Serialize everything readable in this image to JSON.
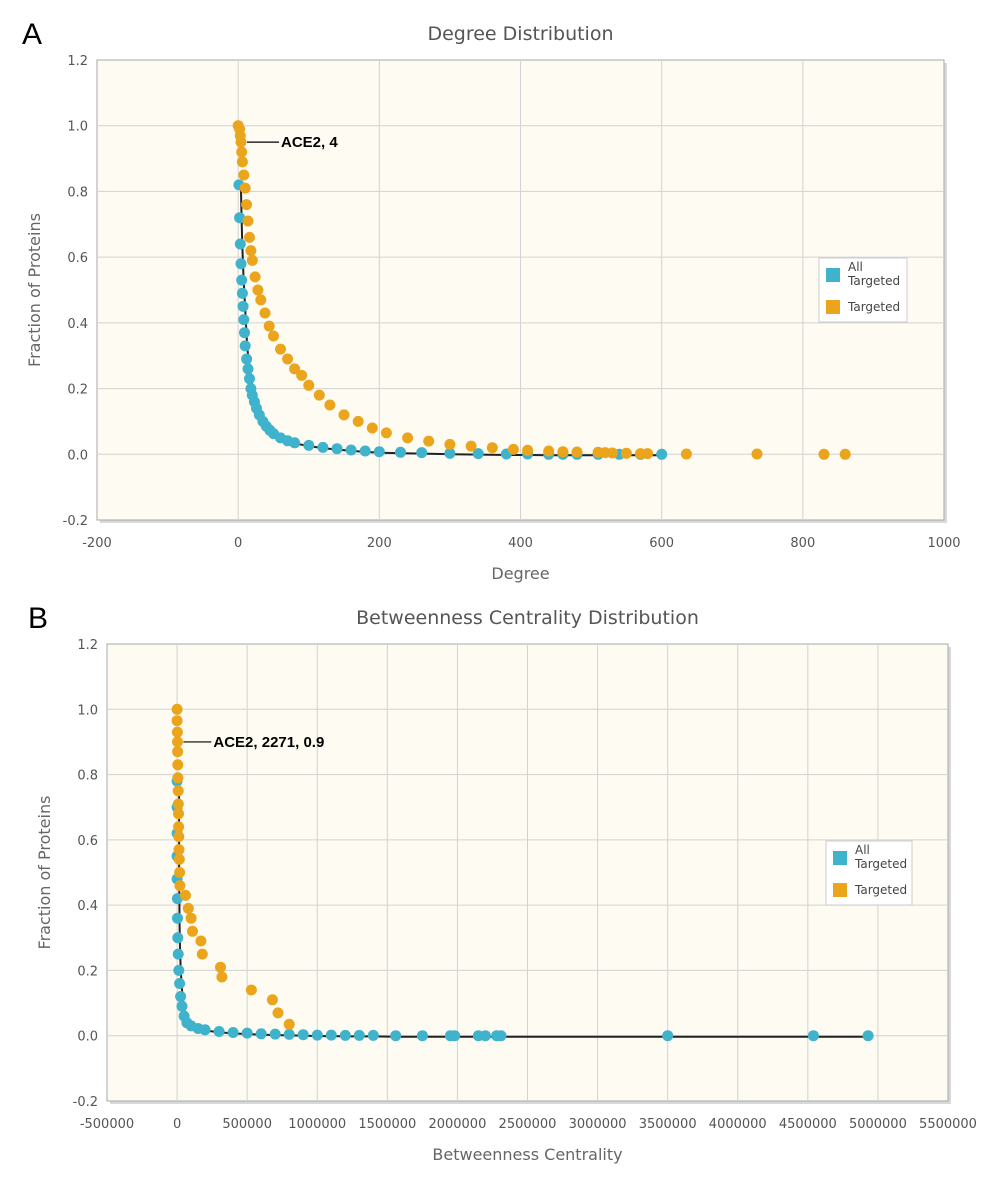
{
  "panels": [
    {
      "letter": "A"
    },
    {
      "letter": "B"
    }
  ],
  "colors": {
    "all_targeted": "#3fb3cc",
    "targeted": "#eba51c",
    "plot_bg": "#fdfbf2",
    "grid": "#d2d2d2"
  },
  "chart_data": [
    {
      "type": "scatter",
      "title": "Degree Distribution",
      "xlabel": "Degree",
      "ylabel": "Fraction of Proteins",
      "xlim": [
        -200,
        1000
      ],
      "ylim": [
        -0.2,
        1.2
      ],
      "xticks": [
        -200,
        0,
        200,
        400,
        600,
        800,
        1000
      ],
      "xtick_labels": [
        "-200",
        "0",
        "200",
        "400",
        "600",
        "800",
        "1000"
      ],
      "yticks": [
        -0.2,
        0.0,
        0.2,
        0.4,
        0.6,
        0.8,
        1.0,
        1.2
      ],
      "ytick_labels": [
        "-0.2",
        "0.0",
        "0.2",
        "0.4",
        "0.6",
        "0.8",
        "1.0",
        "1.2"
      ],
      "grid": true,
      "legend_position": "right",
      "series": [
        {
          "name": "All Targeted",
          "legend_lines": [
            "All",
            "Targeted"
          ],
          "color": "#3fb3cc",
          "points": [
            [
              1,
              0.82
            ],
            [
              2,
              0.72
            ],
            [
              3,
              0.64
            ],
            [
              4,
              0.58
            ],
            [
              5,
              0.53
            ],
            [
              6,
              0.49
            ],
            [
              7,
              0.45
            ],
            [
              8,
              0.41
            ],
            [
              9,
              0.37
            ],
            [
              10,
              0.33
            ],
            [
              12,
              0.29
            ],
            [
              14,
              0.26
            ],
            [
              16,
              0.23
            ],
            [
              18,
              0.2
            ],
            [
              20,
              0.18
            ],
            [
              23,
              0.16
            ],
            [
              26,
              0.14
            ],
            [
              30,
              0.12
            ],
            [
              35,
              0.1
            ],
            [
              40,
              0.085
            ],
            [
              45,
              0.073
            ],
            [
              50,
              0.063
            ],
            [
              60,
              0.05
            ],
            [
              70,
              0.041
            ],
            [
              80,
              0.035
            ],
            [
              100,
              0.027
            ],
            [
              120,
              0.021
            ],
            [
              140,
              0.017
            ],
            [
              160,
              0.013
            ],
            [
              180,
              0.01
            ],
            [
              200,
              0.008
            ],
            [
              230,
              0.006
            ],
            [
              260,
              0.005
            ],
            [
              300,
              0.003
            ],
            [
              340,
              0.002
            ],
            [
              380,
              0.001
            ],
            [
              410,
              0.001
            ],
            [
              440,
              0.0
            ],
            [
              460,
              0.0
            ],
            [
              480,
              0.0
            ],
            [
              510,
              0.0
            ],
            [
              540,
              0.0
            ],
            [
              570,
              0.0
            ],
            [
              600,
              0.0
            ]
          ]
        },
        {
          "name": "Targeted",
          "legend_lines": [
            "Targeted"
          ],
          "color": "#eba51c",
          "points": [
            [
              0,
              1.0
            ],
            [
              2,
              0.99
            ],
            [
              3,
              0.97
            ],
            [
              4,
              0.95
            ],
            [
              5,
              0.92
            ],
            [
              6,
              0.89
            ],
            [
              8,
              0.85
            ],
            [
              10,
              0.81
            ],
            [
              12,
              0.76
            ],
            [
              14,
              0.71
            ],
            [
              16,
              0.66
            ],
            [
              18,
              0.62
            ],
            [
              20,
              0.59
            ],
            [
              24,
              0.54
            ],
            [
              28,
              0.5
            ],
            [
              32,
              0.47
            ],
            [
              38,
              0.43
            ],
            [
              44,
              0.39
            ],
            [
              50,
              0.36
            ],
            [
              60,
              0.32
            ],
            [
              70,
              0.29
            ],
            [
              80,
              0.26
            ],
            [
              90,
              0.24
            ],
            [
              100,
              0.21
            ],
            [
              115,
              0.18
            ],
            [
              130,
              0.15
            ],
            [
              150,
              0.12
            ],
            [
              170,
              0.1
            ],
            [
              190,
              0.08
            ],
            [
              210,
              0.065
            ],
            [
              240,
              0.05
            ],
            [
              270,
              0.04
            ],
            [
              300,
              0.03
            ],
            [
              330,
              0.025
            ],
            [
              360,
              0.02
            ],
            [
              390,
              0.015
            ],
            [
              410,
              0.012
            ],
            [
              440,
              0.01
            ],
            [
              460,
              0.008
            ],
            [
              480,
              0.007
            ],
            [
              510,
              0.006
            ],
            [
              520,
              0.005
            ],
            [
              530,
              0.004
            ],
            [
              550,
              0.003
            ],
            [
              570,
              0.002
            ],
            [
              580,
              0.002
            ],
            [
              635,
              0.001
            ],
            [
              735,
              0.001
            ],
            [
              830,
              0.0
            ],
            [
              860,
              0.0
            ]
          ]
        }
      ],
      "annotations": [
        {
          "text": "ACE2, 4",
          "x": 4,
          "y": 0.95
        }
      ]
    },
    {
      "type": "scatter",
      "title": "Betweenness Centrality Distribution",
      "xlabel": "Betweenness Centrality",
      "ylabel": "Fraction of Proteins",
      "xlim": [
        -500000,
        5500000
      ],
      "ylim": [
        -0.2,
        1.2
      ],
      "xticks": [
        -500000,
        0,
        500000,
        1000000,
        1500000,
        2000000,
        2500000,
        3000000,
        3500000,
        4000000,
        4500000,
        5000000,
        5500000
      ],
      "xtick_labels": [
        "-500000",
        "0",
        "500000",
        "1000000",
        "1500000",
        "2000000",
        "2500000",
        "3000000",
        "3500000",
        "4000000",
        "4500000",
        "5000000",
        "5500000"
      ],
      "yticks": [
        -0.2,
        0.0,
        0.2,
        0.4,
        0.6,
        0.8,
        1.0,
        1.2
      ],
      "ytick_labels": [
        "-0.2",
        "0.0",
        "0.2",
        "0.4",
        "0.6",
        "0.8",
        "1.0",
        "1.2"
      ],
      "grid": true,
      "legend_position": "right",
      "series": [
        {
          "name": "All Targeted",
          "legend_lines": [
            "All",
            "Targeted"
          ],
          "color": "#3fb3cc",
          "points": [
            [
              0,
              0.78
            ],
            [
              0,
              0.7
            ],
            [
              0,
              0.62
            ],
            [
              0,
              0.55
            ],
            [
              0,
              0.48
            ],
            [
              2000,
              0.42
            ],
            [
              3000,
              0.36
            ],
            [
              5000,
              0.3
            ],
            [
              8000,
              0.25
            ],
            [
              12000,
              0.2
            ],
            [
              18000,
              0.16
            ],
            [
              25000,
              0.12
            ],
            [
              35000,
              0.09
            ],
            [
              50000,
              0.06
            ],
            [
              70000,
              0.04
            ],
            [
              100000,
              0.03
            ],
            [
              150000,
              0.022
            ],
            [
              200000,
              0.018
            ],
            [
              300000,
              0.013
            ],
            [
              400000,
              0.01
            ],
            [
              500000,
              0.008
            ],
            [
              600000,
              0.006
            ],
            [
              700000,
              0.005
            ],
            [
              800000,
              0.004
            ],
            [
              900000,
              0.003
            ],
            [
              1000000,
              0.002
            ],
            [
              1100000,
              0.002
            ],
            [
              1200000,
              0.001
            ],
            [
              1300000,
              0.001
            ],
            [
              1400000,
              0.001
            ],
            [
              1560000,
              0.0
            ],
            [
              1750000,
              0.0
            ],
            [
              1950000,
              0.0
            ],
            [
              1980000,
              0.0
            ],
            [
              2150000,
              0.0
            ],
            [
              2200000,
              0.0
            ],
            [
              2280000,
              0.0
            ],
            [
              2310000,
              0.0
            ],
            [
              3500000,
              0.0
            ],
            [
              4540000,
              0.0
            ],
            [
              4930000,
              0.0
            ]
          ]
        },
        {
          "name": "Targeted",
          "legend_lines": [
            "Targeted"
          ],
          "color": "#eba51c",
          "points": [
            [
              0,
              1.0
            ],
            [
              0,
              0.965
            ],
            [
              2271,
              0.93
            ],
            [
              3000,
              0.9
            ],
            [
              4000,
              0.87
            ],
            [
              5000,
              0.83
            ],
            [
              6000,
              0.79
            ],
            [
              8000,
              0.75
            ],
            [
              9000,
              0.71
            ],
            [
              10000,
              0.68
            ],
            [
              11000,
              0.64
            ],
            [
              12000,
              0.61
            ],
            [
              14000,
              0.57
            ],
            [
              16000,
              0.54
            ],
            [
              18000,
              0.5
            ],
            [
              20000,
              0.46
            ],
            [
              60000,
              0.43
            ],
            [
              80000,
              0.39
            ],
            [
              100000,
              0.36
            ],
            [
              110000,
              0.32
            ],
            [
              170000,
              0.29
            ],
            [
              180000,
              0.25
            ],
            [
              310000,
              0.21
            ],
            [
              320000,
              0.18
            ],
            [
              530000,
              0.14
            ],
            [
              680000,
              0.11
            ],
            [
              720000,
              0.07
            ],
            [
              800000,
              0.035
            ]
          ]
        }
      ],
      "annotations": [
        {
          "text": "ACE2, 2271, 0.9",
          "x": 2271,
          "y": 0.9
        }
      ]
    }
  ]
}
